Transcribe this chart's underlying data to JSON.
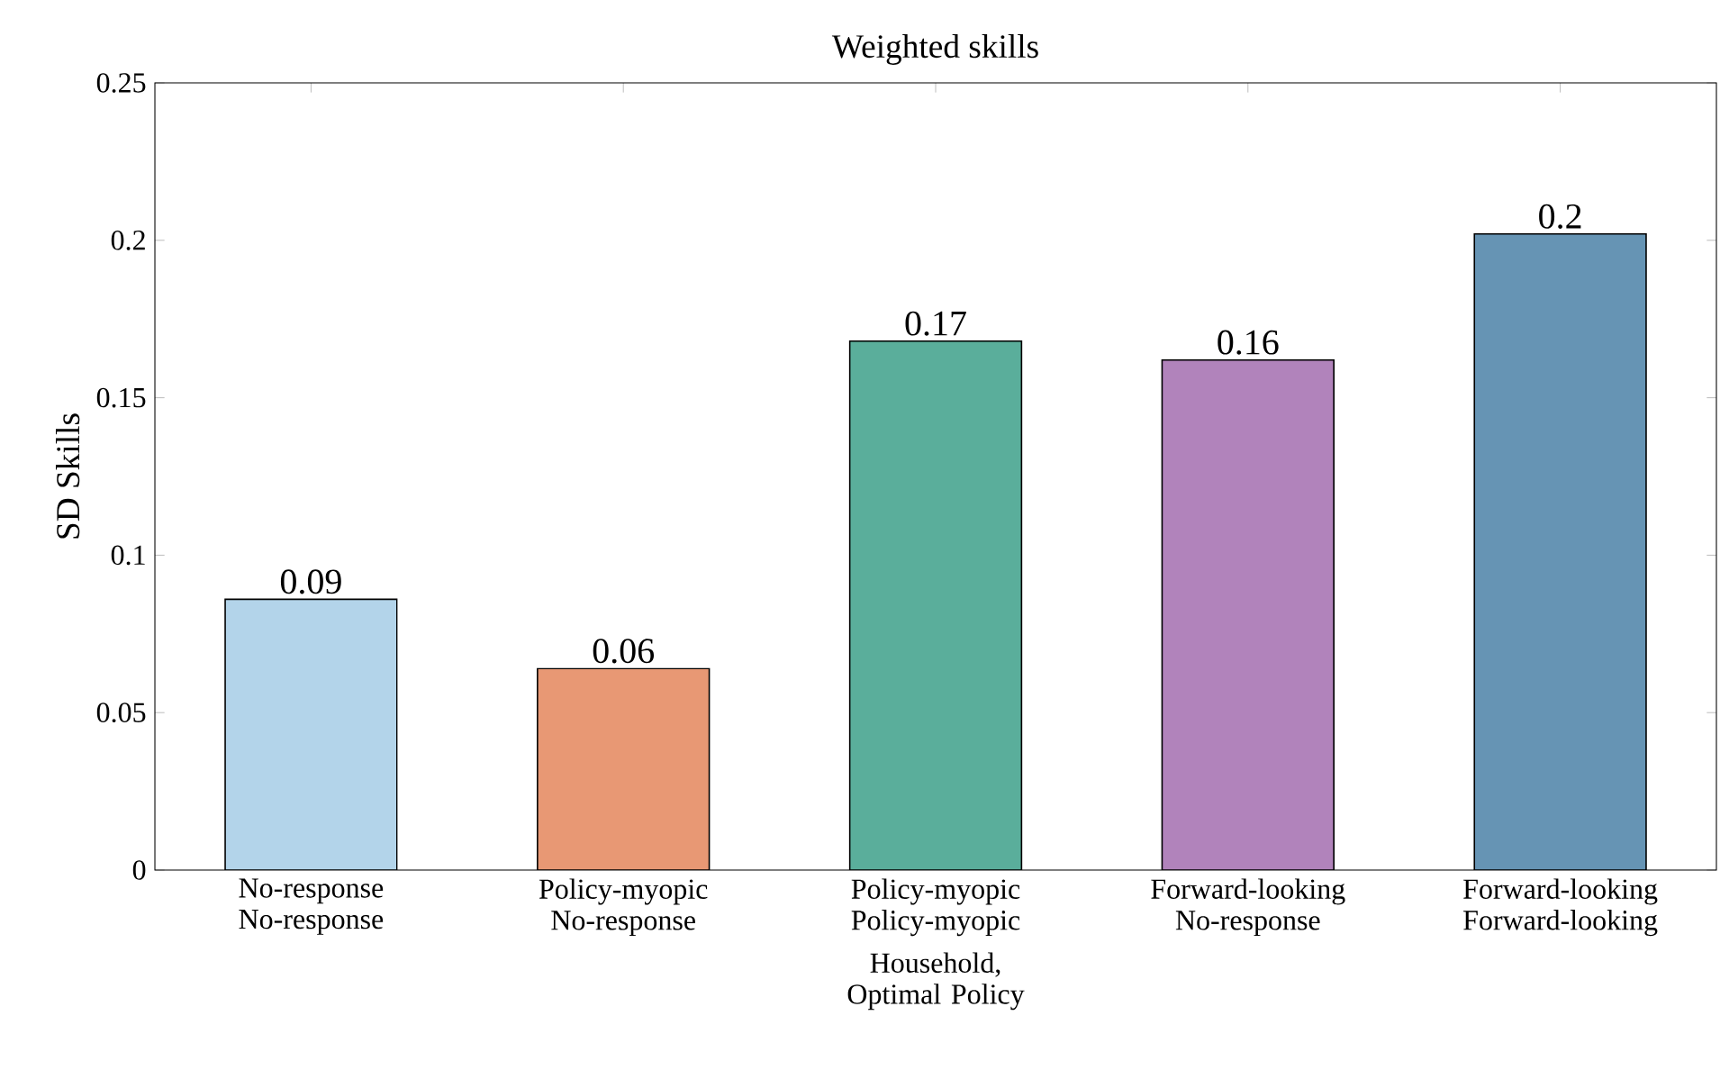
{
  "chart_data": {
    "type": "bar",
    "title": "Weighted skills",
    "xlabel": "Household, Optimal Policy",
    "ylabel": "SD Skills",
    "categories": [
      "No-response No-response",
      "Policy-myopic No-response",
      "Policy-myopic Policy-myopic",
      "Forward-looking No-response",
      "Forward-looking Forward-looking"
    ],
    "values": [
      0.086,
      0.064,
      0.168,
      0.162,
      0.202
    ],
    "value_labels": [
      "0.09",
      "0.06",
      "0.17",
      "0.16",
      "0.2"
    ],
    "colors": [
      "#b3d4ea",
      "#e89874",
      "#5aae9b",
      "#b183bb",
      "#6694b4"
    ],
    "ylim": [
      0,
      0.25
    ],
    "yticks": [
      0,
      0.05,
      0.1,
      0.15,
      0.2,
      0.25
    ]
  }
}
